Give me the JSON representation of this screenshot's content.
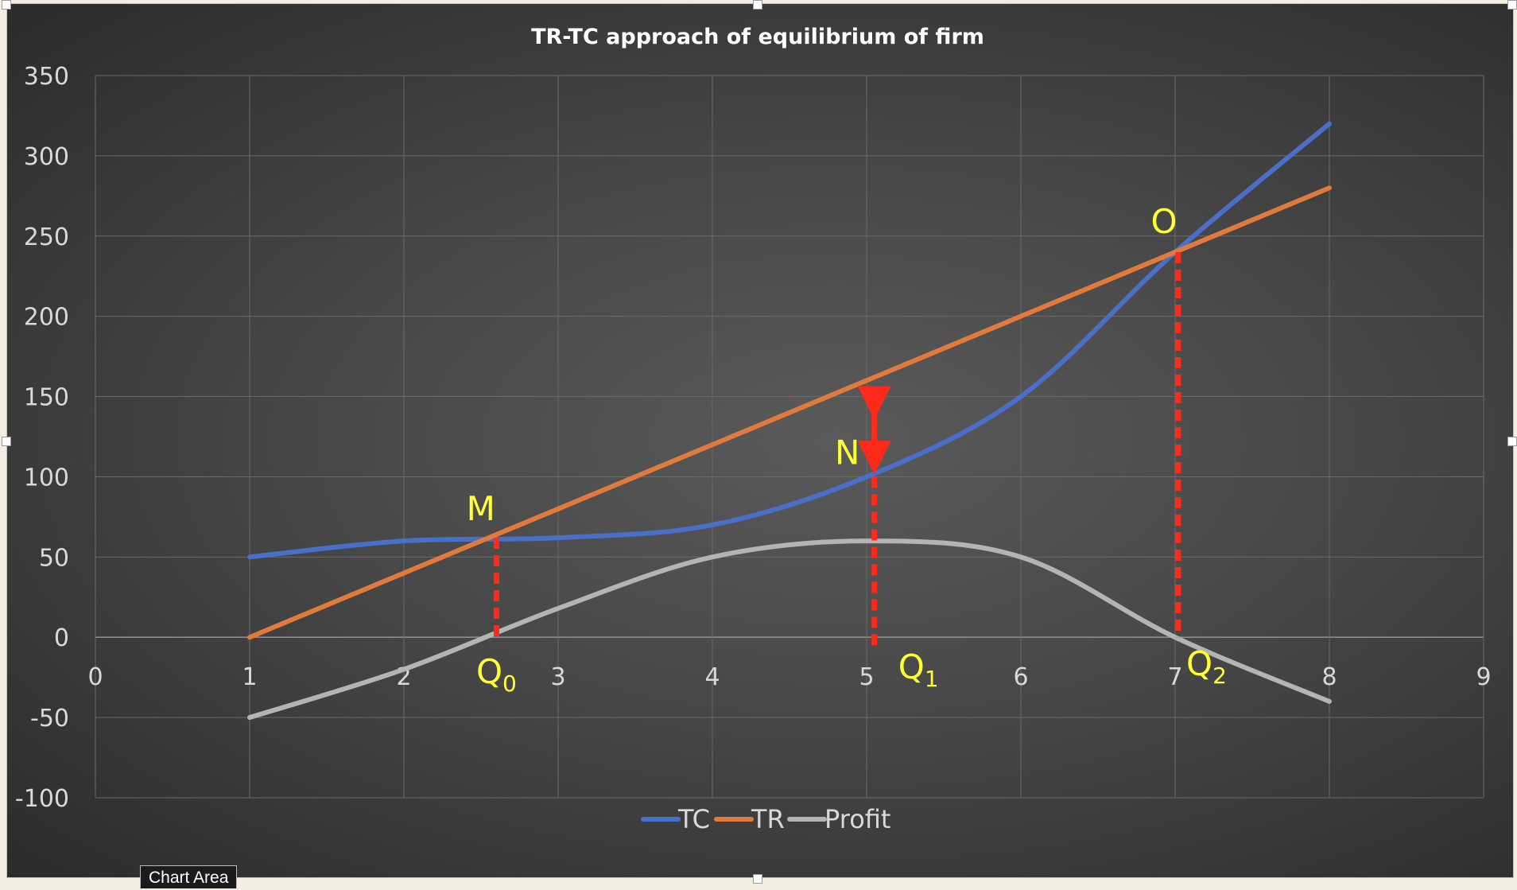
{
  "colors": {
    "tc": "#4a6fc8",
    "tr": "#e07b3c",
    "profit": "#b4b4b4",
    "annotation": "#ff2a1a",
    "label": "#ffff33",
    "text": "#d9d9d9",
    "title": "#ffffff",
    "grid": "#6a6a6a"
  },
  "chart_data": {
    "type": "line",
    "title": "TR-TC approach of equilibrium of firm",
    "xlabel": "",
    "ylabel": "",
    "xlim": [
      0,
      9
    ],
    "ylim": [
      -100,
      350
    ],
    "x_ticks": [
      "0",
      "1",
      "2",
      "3",
      "4",
      "5",
      "6",
      "7",
      "8",
      "9"
    ],
    "y_ticks": [
      "350",
      "300",
      "250",
      "200",
      "150",
      "100",
      "50",
      "0",
      "-50",
      "-100"
    ],
    "grid": true,
    "legend": "bottom-center",
    "smooth": true,
    "x": [
      1,
      2,
      3,
      4,
      5,
      6,
      7,
      8
    ],
    "series": [
      {
        "name": "TC",
        "values": [
          50,
          60,
          62,
          70,
          100,
          150,
          240,
          320
        ]
      },
      {
        "name": "TR",
        "values": [
          0,
          40,
          80,
          120,
          160,
          200,
          240,
          280
        ]
      },
      {
        "name": "Profit",
        "values": [
          -50,
          -20,
          18,
          50,
          60,
          50,
          0,
          -40
        ]
      }
    ],
    "annotations": [
      {
        "text": "M",
        "x": 2.55,
        "y": 62
      },
      {
        "text": "N",
        "x": 5.05,
        "y": 100
      },
      {
        "text": "O",
        "x": 7.0,
        "y": 240
      },
      {
        "text": "Q",
        "sub": "0",
        "x": 2.6,
        "y": 0
      },
      {
        "text": "Q",
        "sub": "1",
        "x": 5.05,
        "y": 0
      },
      {
        "text": "Q",
        "sub": "2",
        "x": 7.0,
        "y": 0
      }
    ]
  },
  "tooltip": {
    "label": "Chart Area"
  }
}
